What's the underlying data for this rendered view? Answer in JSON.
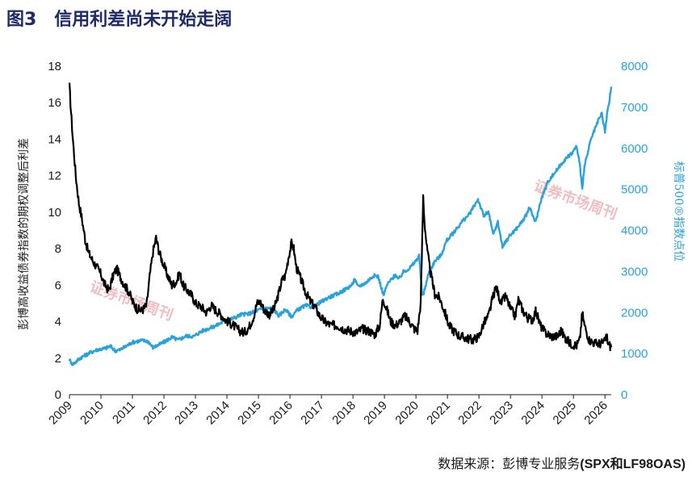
{
  "figure_title": "图3　信用利差尚未开始走阔",
  "source_text": "数据来源：彭博专业服务",
  "source_codes": "(SPX和LF98OAS)",
  "watermark": "证券市场周刊",
  "colors": {
    "spread": "#000000",
    "spx": "#29a2dc",
    "title": "#1f2a6b"
  },
  "chart_data": {
    "type": "line",
    "title": "信用利差尚未开始走阔",
    "x_ticks": [
      "2009",
      "2010",
      "2011",
      "2012",
      "2013",
      "2014",
      "2015",
      "2016",
      "2017",
      "2018",
      "2019",
      "2020",
      "2021",
      "2022",
      "2023",
      "2024",
      "2025",
      "2026"
    ],
    "xlim": [
      2009,
      2026.2
    ],
    "y_left": {
      "label": "彭博高收益债券指数的期权调整后利差",
      "ylim": [
        0,
        18
      ],
      "ticks": [
        0,
        2,
        4,
        6,
        8,
        10,
        12,
        14,
        16,
        18
      ]
    },
    "y_right": {
      "label": "标普500®指数点位",
      "ylim": [
        0,
        8000
      ],
      "ticks": [
        0,
        1000,
        2000,
        3000,
        4000,
        5000,
        6000,
        7000,
        8000
      ]
    },
    "series": [
      {
        "axis": "left",
        "color": "#000000",
        "points": [
          [
            2009.0,
            16.9
          ],
          [
            2009.05,
            15.5
          ],
          [
            2009.1,
            14.2
          ],
          [
            2009.2,
            12.0
          ],
          [
            2009.3,
            10.5
          ],
          [
            2009.4,
            9.6
          ],
          [
            2009.5,
            8.5
          ],
          [
            2009.6,
            7.8
          ],
          [
            2009.75,
            7.3
          ],
          [
            2009.9,
            6.9
          ],
          [
            2010.0,
            6.6
          ],
          [
            2010.1,
            6.1
          ],
          [
            2010.25,
            5.7
          ],
          [
            2010.4,
            6.6
          ],
          [
            2010.5,
            6.9
          ],
          [
            2010.6,
            6.5
          ],
          [
            2010.75,
            6.0
          ],
          [
            2010.9,
            5.6
          ],
          [
            2011.0,
            5.1
          ],
          [
            2011.15,
            4.7
          ],
          [
            2011.3,
            4.6
          ],
          [
            2011.45,
            4.9
          ],
          [
            2011.55,
            6.5
          ],
          [
            2011.65,
            7.8
          ],
          [
            2011.75,
            8.6
          ],
          [
            2011.85,
            7.8
          ],
          [
            2011.95,
            7.3
          ],
          [
            2012.1,
            6.6
          ],
          [
            2012.25,
            6.0
          ],
          [
            2012.4,
            6.2
          ],
          [
            2012.5,
            6.7
          ],
          [
            2012.6,
            6.0
          ],
          [
            2012.75,
            5.7
          ],
          [
            2012.9,
            5.4
          ],
          [
            2013.0,
            5.0
          ],
          [
            2013.2,
            4.8
          ],
          [
            2013.35,
            4.5
          ],
          [
            2013.5,
            4.9
          ],
          [
            2013.6,
            4.7
          ],
          [
            2013.8,
            4.4
          ],
          [
            2013.95,
            4.1
          ],
          [
            2014.2,
            3.8
          ],
          [
            2014.4,
            3.5
          ],
          [
            2014.55,
            3.4
          ],
          [
            2014.7,
            3.7
          ],
          [
            2014.85,
            4.3
          ],
          [
            2014.95,
            5.0
          ],
          [
            2015.05,
            5.1
          ],
          [
            2015.2,
            4.6
          ],
          [
            2015.35,
            4.4
          ],
          [
            2015.5,
            4.7
          ],
          [
            2015.65,
            5.6
          ],
          [
            2015.75,
            6.3
          ],
          [
            2015.85,
            6.5
          ],
          [
            2015.95,
            7.5
          ],
          [
            2016.05,
            8.3
          ],
          [
            2016.12,
            8.0
          ],
          [
            2016.2,
            7.0
          ],
          [
            2016.35,
            6.3
          ],
          [
            2016.5,
            5.6
          ],
          [
            2016.65,
            5.1
          ],
          [
            2016.8,
            4.8
          ],
          [
            2016.95,
            4.3
          ],
          [
            2017.1,
            4.0
          ],
          [
            2017.3,
            3.8
          ],
          [
            2017.5,
            3.8
          ],
          [
            2017.7,
            3.6
          ],
          [
            2017.9,
            3.5
          ],
          [
            2018.1,
            3.4
          ],
          [
            2018.3,
            3.6
          ],
          [
            2018.5,
            3.5
          ],
          [
            2018.7,
            3.3
          ],
          [
            2018.85,
            3.8
          ],
          [
            2018.95,
            5.3
          ],
          [
            2019.05,
            4.8
          ],
          [
            2019.2,
            4.0
          ],
          [
            2019.35,
            3.8
          ],
          [
            2019.5,
            4.0
          ],
          [
            2019.65,
            4.3
          ],
          [
            2019.8,
            4.0
          ],
          [
            2019.95,
            3.6
          ],
          [
            2020.05,
            3.5
          ],
          [
            2020.15,
            5.0
          ],
          [
            2020.2,
            8.5
          ],
          [
            2020.23,
            10.9
          ],
          [
            2020.27,
            9.5
          ],
          [
            2020.35,
            8.0
          ],
          [
            2020.45,
            6.8
          ],
          [
            2020.6,
            5.5
          ],
          [
            2020.75,
            5.3
          ],
          [
            2020.9,
            4.6
          ],
          [
            2021.05,
            3.8
          ],
          [
            2021.2,
            3.5
          ],
          [
            2021.4,
            3.2
          ],
          [
            2021.6,
            3.1
          ],
          [
            2021.8,
            3.0
          ],
          [
            2022.0,
            3.2
          ],
          [
            2022.15,
            3.9
          ],
          [
            2022.3,
            4.3
          ],
          [
            2022.45,
            5.4
          ],
          [
            2022.55,
            5.9
          ],
          [
            2022.7,
            5.0
          ],
          [
            2022.85,
            5.4
          ],
          [
            2023.0,
            4.7
          ],
          [
            2023.15,
            4.3
          ],
          [
            2023.25,
            5.2
          ],
          [
            2023.4,
            4.6
          ],
          [
            2023.55,
            4.2
          ],
          [
            2023.7,
            4.1
          ],
          [
            2023.8,
            4.6
          ],
          [
            2023.95,
            3.8
          ],
          [
            2024.1,
            3.4
          ],
          [
            2024.3,
            3.2
          ],
          [
            2024.5,
            3.2
          ],
          [
            2024.6,
            3.5
          ],
          [
            2024.75,
            3.1
          ],
          [
            2024.9,
            2.8
          ],
          [
            2025.1,
            2.7
          ],
          [
            2025.2,
            3.0
          ],
          [
            2025.28,
            4.5
          ],
          [
            2025.35,
            3.8
          ],
          [
            2025.5,
            3.0
          ],
          [
            2025.7,
            2.8
          ],
          [
            2025.85,
            2.8
          ],
          [
            2026.0,
            2.9
          ],
          [
            2026.05,
            3.3
          ],
          [
            2026.1,
            2.8
          ],
          [
            2026.2,
            2.6
          ]
        ]
      },
      {
        "axis": "right",
        "color": "#29a2dc",
        "points": [
          [
            2009.0,
            850
          ],
          [
            2009.1,
            740
          ],
          [
            2009.2,
            800
          ],
          [
            2009.35,
            900
          ],
          [
            2009.5,
            960
          ],
          [
            2009.7,
            1040
          ],
          [
            2009.9,
            1100
          ],
          [
            2010.1,
            1120
          ],
          [
            2010.3,
            1180
          ],
          [
            2010.45,
            1070
          ],
          [
            2010.6,
            1090
          ],
          [
            2010.8,
            1180
          ],
          [
            2011.0,
            1280
          ],
          [
            2011.3,
            1320
          ],
          [
            2011.5,
            1300
          ],
          [
            2011.65,
            1150
          ],
          [
            2011.8,
            1200
          ],
          [
            2012.0,
            1280
          ],
          [
            2012.25,
            1400
          ],
          [
            2012.45,
            1330
          ],
          [
            2012.7,
            1430
          ],
          [
            2012.95,
            1420
          ],
          [
            2013.2,
            1550
          ],
          [
            2013.45,
            1620
          ],
          [
            2013.7,
            1700
          ],
          [
            2013.95,
            1810
          ],
          [
            2014.2,
            1860
          ],
          [
            2014.45,
            1950
          ],
          [
            2014.7,
            1970
          ],
          [
            2014.95,
            2050
          ],
          [
            2015.2,
            2100
          ],
          [
            2015.45,
            2110
          ],
          [
            2015.65,
            1920
          ],
          [
            2015.85,
            2080
          ],
          [
            2016.05,
            1900
          ],
          [
            2016.25,
            2070
          ],
          [
            2016.5,
            2170
          ],
          [
            2016.75,
            2130
          ],
          [
            2016.95,
            2240
          ],
          [
            2017.2,
            2360
          ],
          [
            2017.5,
            2450
          ],
          [
            2017.75,
            2560
          ],
          [
            2017.98,
            2680
          ],
          [
            2018.05,
            2830
          ],
          [
            2018.15,
            2630
          ],
          [
            2018.4,
            2720
          ],
          [
            2018.65,
            2900
          ],
          [
            2018.8,
            2880
          ],
          [
            2018.97,
            2420
          ],
          [
            2019.1,
            2700
          ],
          [
            2019.35,
            2920
          ],
          [
            2019.45,
            2800
          ],
          [
            2019.6,
            2990
          ],
          [
            2019.8,
            3080
          ],
          [
            2019.97,
            3230
          ],
          [
            2020.1,
            3380
          ],
          [
            2020.2,
            2400
          ],
          [
            2020.25,
            2480
          ],
          [
            2020.4,
            2950
          ],
          [
            2020.6,
            3250
          ],
          [
            2020.8,
            3400
          ],
          [
            2020.97,
            3750
          ],
          [
            2021.2,
            3950
          ],
          [
            2021.45,
            4200
          ],
          [
            2021.7,
            4400
          ],
          [
            2021.97,
            4760
          ],
          [
            2022.15,
            4350
          ],
          [
            2022.3,
            4450
          ],
          [
            2022.45,
            3900
          ],
          [
            2022.6,
            4200
          ],
          [
            2022.75,
            3600
          ],
          [
            2022.95,
            3850
          ],
          [
            2023.2,
            4050
          ],
          [
            2023.45,
            4300
          ],
          [
            2023.6,
            4550
          ],
          [
            2023.8,
            4200
          ],
          [
            2023.97,
            4750
          ],
          [
            2024.2,
            5200
          ],
          [
            2024.45,
            5450
          ],
          [
            2024.7,
            5700
          ],
          [
            2024.97,
            5900
          ],
          [
            2025.1,
            6050
          ],
          [
            2025.2,
            5600
          ],
          [
            2025.28,
            5050
          ],
          [
            2025.35,
            5550
          ],
          [
            2025.55,
            6200
          ],
          [
            2025.75,
            6600
          ],
          [
            2025.9,
            6850
          ],
          [
            2026.0,
            6400
          ],
          [
            2026.08,
            6900
          ],
          [
            2026.13,
            7100
          ],
          [
            2026.2,
            7500
          ]
        ]
      }
    ]
  }
}
